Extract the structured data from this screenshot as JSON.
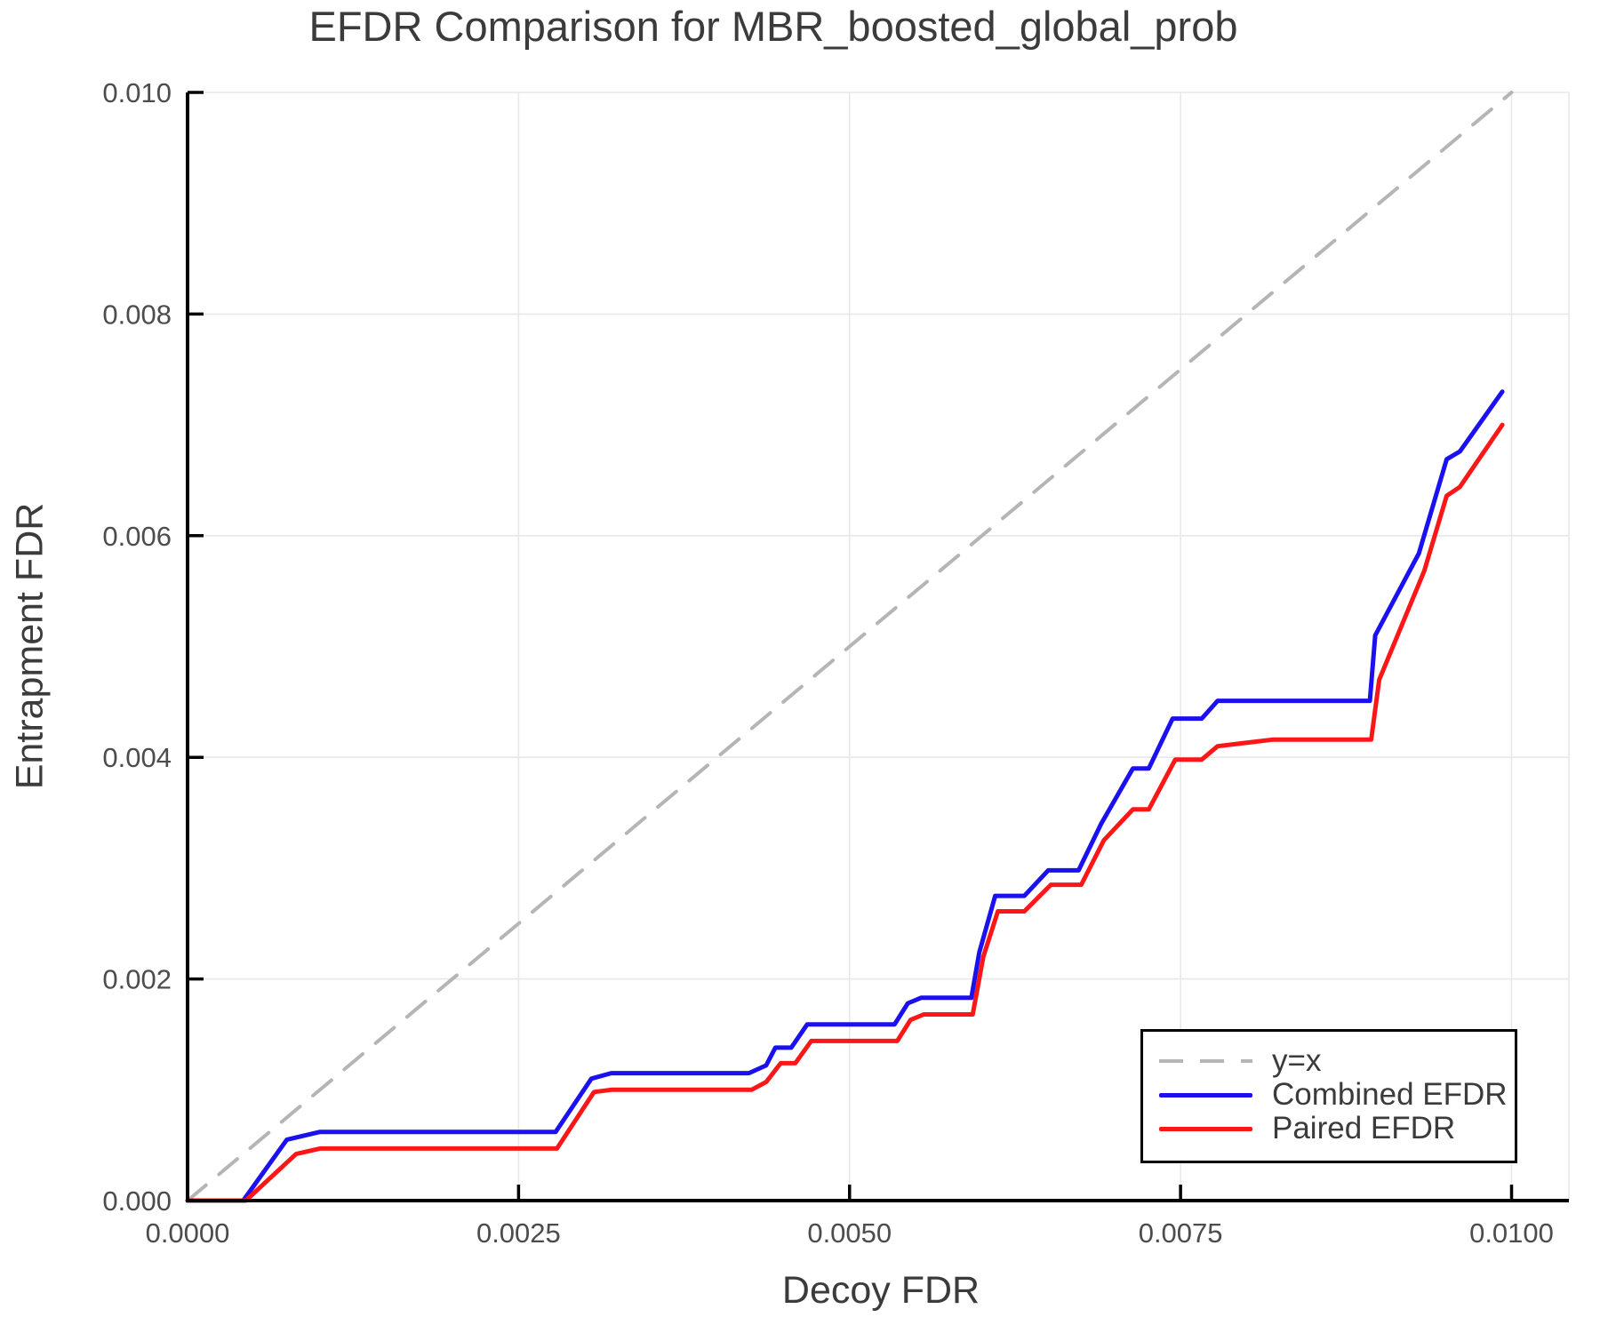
{
  "chart_data": {
    "type": "line",
    "title": "EFDR Comparison for MBR_boosted_global_prob",
    "xlabel": "Decoy FDR",
    "ylabel": "Entrapment FDR",
    "xlim": [
      0.0,
      0.010433
    ],
    "ylim": [
      0.0,
      0.01
    ],
    "grid": true,
    "background": "#ffffff",
    "grid_color": "#e8e8e8",
    "axis_color": "#000000",
    "text_color": "#3b3b3b",
    "tick_label_color": "#4c4c4c",
    "legend_position": "lower right",
    "xtick_values": [
      0.0,
      0.0025,
      0.005,
      0.0075,
      0.01
    ],
    "xtick_labels": [
      "0.0000",
      "0.0025",
      "0.0050",
      "0.0075",
      "0.0100"
    ],
    "ytick_values": [
      0.0,
      0.002,
      0.004,
      0.006,
      0.008,
      0.01
    ],
    "ytick_labels": [
      "0.000",
      "0.002",
      "0.004",
      "0.006",
      "0.008",
      "0.010"
    ],
    "series": [
      {
        "name": "y=x",
        "color": "#b5b5b5",
        "dashed": true,
        "width": 4,
        "points": [
          [
            0.0,
            0.0
          ],
          [
            0.01,
            0.01
          ]
        ]
      },
      {
        "name": "Combined EFDR",
        "color": "#1a10f0",
        "dashed": false,
        "width": 5,
        "points": [
          [
            0.0,
            0.0
          ],
          [
            0.00042,
            0.0
          ],
          [
            0.00075,
            0.00055
          ],
          [
            0.001,
            0.00062
          ],
          [
            0.00278,
            0.00062
          ],
          [
            0.00305,
            0.0011
          ],
          [
            0.0032,
            0.00115
          ],
          [
            0.00424,
            0.00115
          ],
          [
            0.00437,
            0.00122
          ],
          [
            0.00444,
            0.00138
          ],
          [
            0.00456,
            0.00138
          ],
          [
            0.00468,
            0.00159
          ],
          [
            0.00534,
            0.00159
          ],
          [
            0.00544,
            0.00178
          ],
          [
            0.00554,
            0.00183
          ],
          [
            0.00592,
            0.00183
          ],
          [
            0.00598,
            0.00224
          ],
          [
            0.0061,
            0.00275
          ],
          [
            0.00632,
            0.00275
          ],
          [
            0.0065,
            0.00298
          ],
          [
            0.00673,
            0.00298
          ],
          [
            0.0069,
            0.0034
          ],
          [
            0.00714,
            0.0039
          ],
          [
            0.00726,
            0.0039
          ],
          [
            0.00744,
            0.00435
          ],
          [
            0.00766,
            0.00435
          ],
          [
            0.00778,
            0.00451
          ],
          [
            0.00893,
            0.00451
          ],
          [
            0.00897,
            0.0051
          ],
          [
            0.0093,
            0.00584
          ],
          [
            0.00951,
            0.00669
          ],
          [
            0.00961,
            0.00676
          ],
          [
            0.00993,
            0.0073
          ]
        ]
      },
      {
        "name": "Paired EFDR",
        "color": "#fb1717",
        "dashed": false,
        "width": 5,
        "points": [
          [
            0.0,
            0.0
          ],
          [
            0.00044,
            0.0
          ],
          [
            0.00082,
            0.00042
          ],
          [
            0.001,
            0.00047
          ],
          [
            0.00279,
            0.00047
          ],
          [
            0.00307,
            0.00098
          ],
          [
            0.0032,
            0.001
          ],
          [
            0.00426,
            0.001
          ],
          [
            0.00437,
            0.00107
          ],
          [
            0.00448,
            0.00124
          ],
          [
            0.00459,
            0.00124
          ],
          [
            0.00471,
            0.00144
          ],
          [
            0.00536,
            0.00144
          ],
          [
            0.00546,
            0.00163
          ],
          [
            0.00556,
            0.00168
          ],
          [
            0.00593,
            0.00168
          ],
          [
            0.00601,
            0.0022
          ],
          [
            0.00612,
            0.00261
          ],
          [
            0.00632,
            0.00261
          ],
          [
            0.00652,
            0.00285
          ],
          [
            0.00675,
            0.00285
          ],
          [
            0.00692,
            0.00325
          ],
          [
            0.00714,
            0.00353
          ],
          [
            0.00726,
            0.00353
          ],
          [
            0.00746,
            0.00398
          ],
          [
            0.00766,
            0.00398
          ],
          [
            0.00778,
            0.0041
          ],
          [
            0.0082,
            0.00416
          ],
          [
            0.00894,
            0.00416
          ],
          [
            0.009,
            0.0047
          ],
          [
            0.00934,
            0.00568
          ],
          [
            0.00951,
            0.00636
          ],
          [
            0.00961,
            0.00644
          ],
          [
            0.00993,
            0.007
          ]
        ]
      }
    ]
  }
}
